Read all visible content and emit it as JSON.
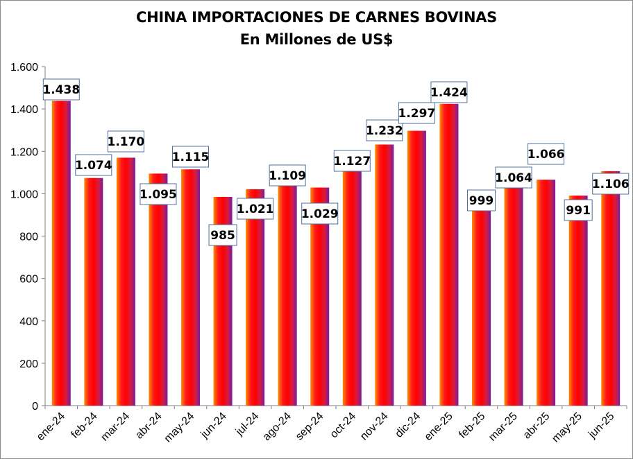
{
  "chart_data": {
    "type": "bar",
    "title": "CHINA IMPORTACIONES DE CARNES BOVINAS",
    "subtitle": "En Millones de US$",
    "categories": [
      "ene-24",
      "feb-24",
      "mar-24",
      "abr-24",
      "may-24",
      "jun-24",
      "jul-24",
      "ago-24",
      "sep-24",
      "oct-24",
      "nov-24",
      "dic-24",
      "ene-25",
      "feb-25",
      "mar-25",
      "abr-25",
      "may-25",
      "jun-25"
    ],
    "values": [
      1438,
      1074,
      1170,
      1095,
      1115,
      985,
      1021,
      1109,
      1029,
      1127,
      1232,
      1297,
      1424,
      999,
      1064,
      1066,
      991,
      1106
    ],
    "value_labels": [
      "1.438",
      "1.074",
      "1.170",
      "1.095",
      "1.115",
      "985",
      "1.021",
      "1.109",
      "1.029",
      "1.127",
      "1.232",
      "1.297",
      "1.424",
      "999",
      "1.064",
      "1.066",
      "991",
      "1.106"
    ],
    "ylim": [
      0,
      1600
    ],
    "yticks": [
      0,
      200,
      400,
      600,
      800,
      1000,
      1200,
      1400,
      1600
    ],
    "ytick_labels": [
      "0",
      "200",
      "400",
      "600",
      "800",
      "1.000",
      "1.200",
      "1.400",
      "1.600"
    ],
    "xlabel": "",
    "ylabel": "",
    "grid": false,
    "legend": "none",
    "bar_gradient": [
      "#ff8c00",
      "#ff1a1a",
      "#ff0000",
      "#d81c3c",
      "#7a1aa0"
    ],
    "label_border_color": "#4f6f9f"
  }
}
